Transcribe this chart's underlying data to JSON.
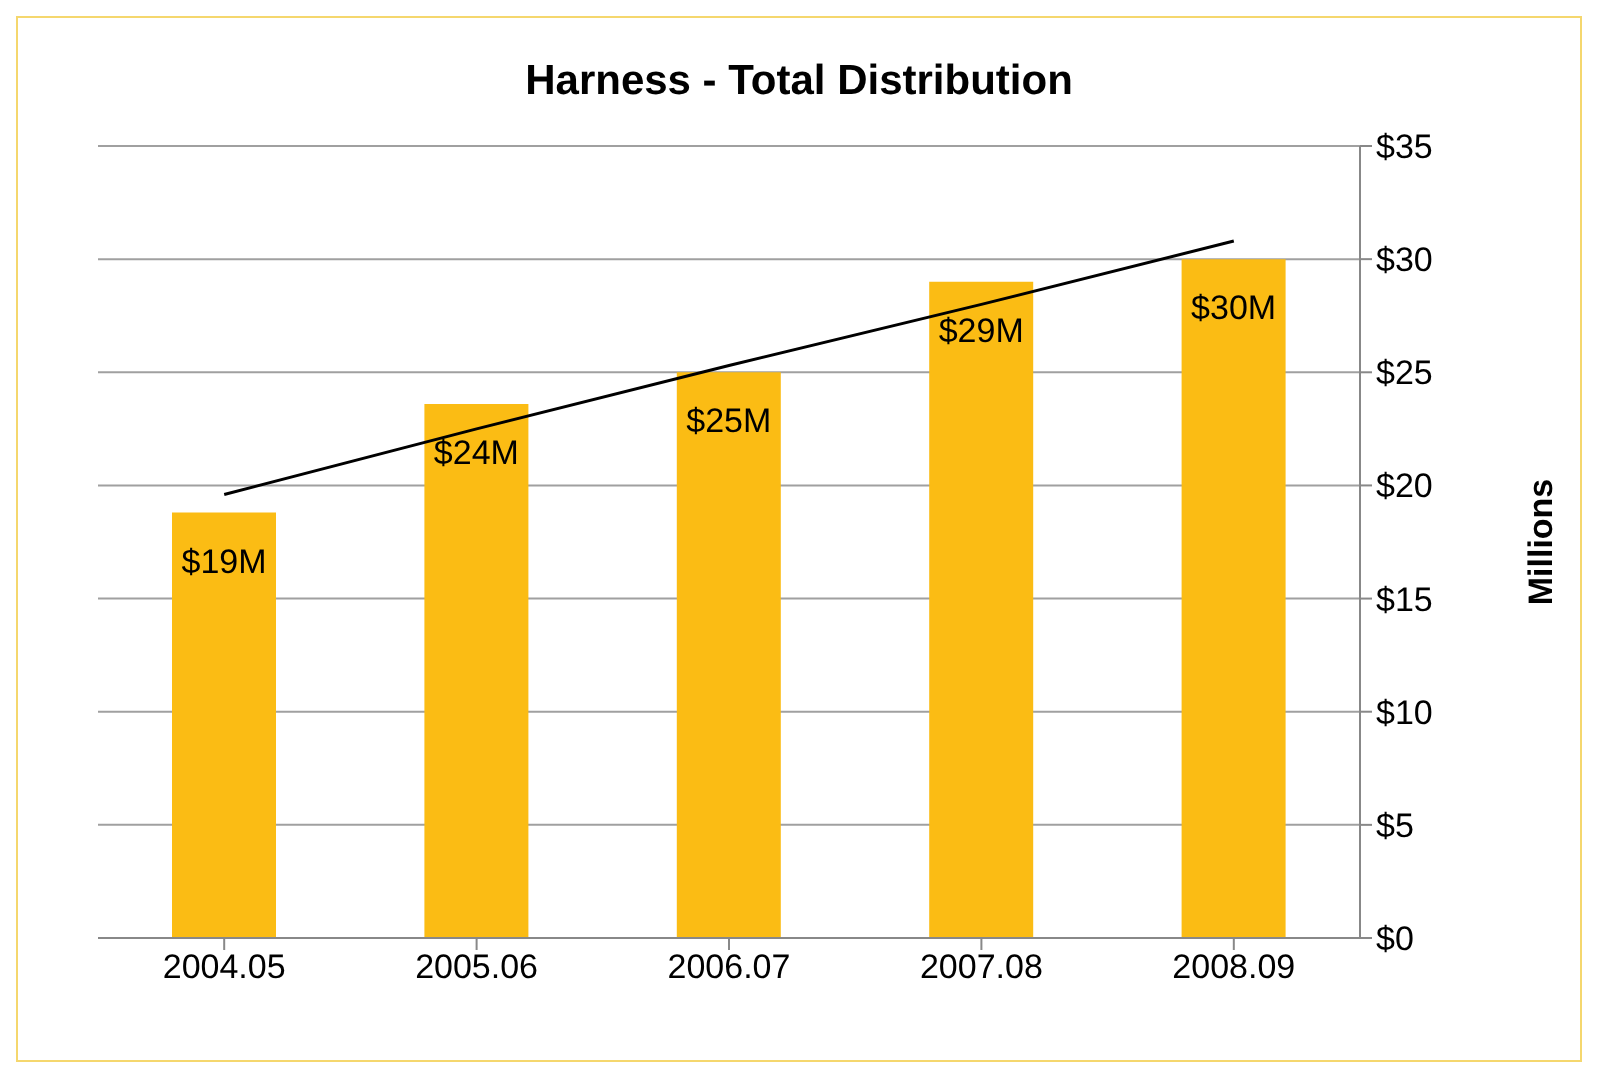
{
  "chart_data": {
    "type": "bar",
    "title": "Harness - Total Distribution",
    "ylabel": "Millions",
    "categories": [
      "2004.05",
      "2005.06",
      "2006.07",
      "2007.08",
      "2008.09"
    ],
    "series": [
      {
        "color": "#fbbc14",
        "values": [
          18.8,
          23.6,
          25,
          29,
          30
        ],
        "value_labels": [
          "$19M",
          "$24M",
          "$25M",
          "$29M",
          "$30M"
        ]
      },
      {
        "type": "line",
        "color": "#000000",
        "values": [
          19.6,
          22.5,
          25.3,
          28.0,
          30.8
        ],
        "marker": "none"
      }
    ],
    "ylim": [
      0,
      35
    ],
    "yticks": [
      {
        "value": 0,
        "label": "$0"
      },
      {
        "value": 5,
        "label": "$5"
      },
      {
        "value": 10,
        "label": "$10"
      },
      {
        "value": 15,
        "label": "$15"
      },
      {
        "value": 20,
        "label": "$20"
      },
      {
        "value": 25,
        "label": "$25"
      },
      {
        "value": 30,
        "label": "$30"
      },
      {
        "value": 35,
        "label": "$35"
      }
    ],
    "grid": "y",
    "legend": false
  }
}
